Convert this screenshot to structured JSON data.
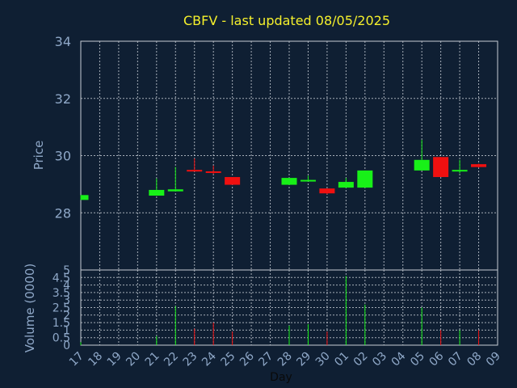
{
  "chart_data": {
    "type": "candlestick",
    "title": "CBFV - last updated 08/05/2025",
    "ylabel": "Price",
    "volume_label": "Volume (0000)",
    "xlabel": "Day",
    "price_ylim": [
      26.0,
      34.0
    ],
    "price_ticks": [
      "28",
      "30",
      "32",
      "34"
    ],
    "volume_ylim": [
      0,
      5
    ],
    "volume_ticks": [
      "0",
      "0.5",
      "1",
      "1.5",
      "2",
      "2.5",
      "3",
      "3.5",
      "4",
      "4.5",
      "5"
    ],
    "x_ticks": [
      "17",
      "18",
      "19",
      "20",
      "21",
      "22",
      "23",
      "24",
      "25",
      "26",
      "27",
      "28",
      "29",
      "30",
      "01",
      "02",
      "03",
      "04",
      "05",
      "06",
      "07",
      "08",
      "09"
    ],
    "grid": true,
    "colors": {
      "background": "#0f1f33",
      "up": "#18f018",
      "down": "#f01010",
      "title": "#f5f02c",
      "axis_text": "#8fa8c8"
    },
    "candles": [
      {
        "day": "17",
        "open": 28.45,
        "high": 28.62,
        "low": 28.45,
        "close": 28.62,
        "volume": 0.2
      },
      {
        "day": "21",
        "open": 28.6,
        "high": 29.2,
        "low": 28.6,
        "close": 28.8,
        "volume": 0.6
      },
      {
        "day": "22",
        "open": 28.75,
        "high": 29.6,
        "low": 28.75,
        "close": 28.82,
        "volume": 2.6
      },
      {
        "day": "23",
        "open": 29.5,
        "high": 29.9,
        "low": 29.45,
        "close": 29.45,
        "volume": 1.1
      },
      {
        "day": "24",
        "open": 29.45,
        "high": 29.65,
        "low": 29.35,
        "close": 29.4,
        "volume": 1.5
      },
      {
        "day": "25",
        "open": 29.25,
        "high": 29.25,
        "low": 28.98,
        "close": 28.98,
        "volume": 0.9
      },
      {
        "day": "28",
        "open": 28.98,
        "high": 29.22,
        "low": 28.98,
        "close": 29.22,
        "volume": 1.3
      },
      {
        "day": "29",
        "open": 29.1,
        "high": 29.3,
        "low": 29.1,
        "close": 29.15,
        "volume": 1.4
      },
      {
        "day": "30",
        "open": 28.85,
        "high": 28.85,
        "low": 28.65,
        "close": 28.68,
        "volume": 0.9
      },
      {
        "day": "01",
        "open": 28.88,
        "high": 29.22,
        "low": 28.88,
        "close": 29.08,
        "volume": 4.6
      },
      {
        "day": "02",
        "open": 28.88,
        "high": 29.48,
        "low": 28.88,
        "close": 29.48,
        "volume": 2.7
      },
      {
        "day": "05",
        "open": 29.48,
        "high": 30.55,
        "low": 29.48,
        "close": 29.85,
        "volume": 2.5
      },
      {
        "day": "06",
        "open": 29.95,
        "high": 29.95,
        "low": 29.25,
        "close": 29.25,
        "volume": 1.0
      },
      {
        "day": "07",
        "open": 29.45,
        "high": 29.85,
        "low": 29.38,
        "close": 29.5,
        "volume": 1.0
      },
      {
        "day": "08",
        "open": 29.7,
        "high": 29.72,
        "low": 29.58,
        "close": 29.6,
        "volume": 1.0
      }
    ]
  }
}
